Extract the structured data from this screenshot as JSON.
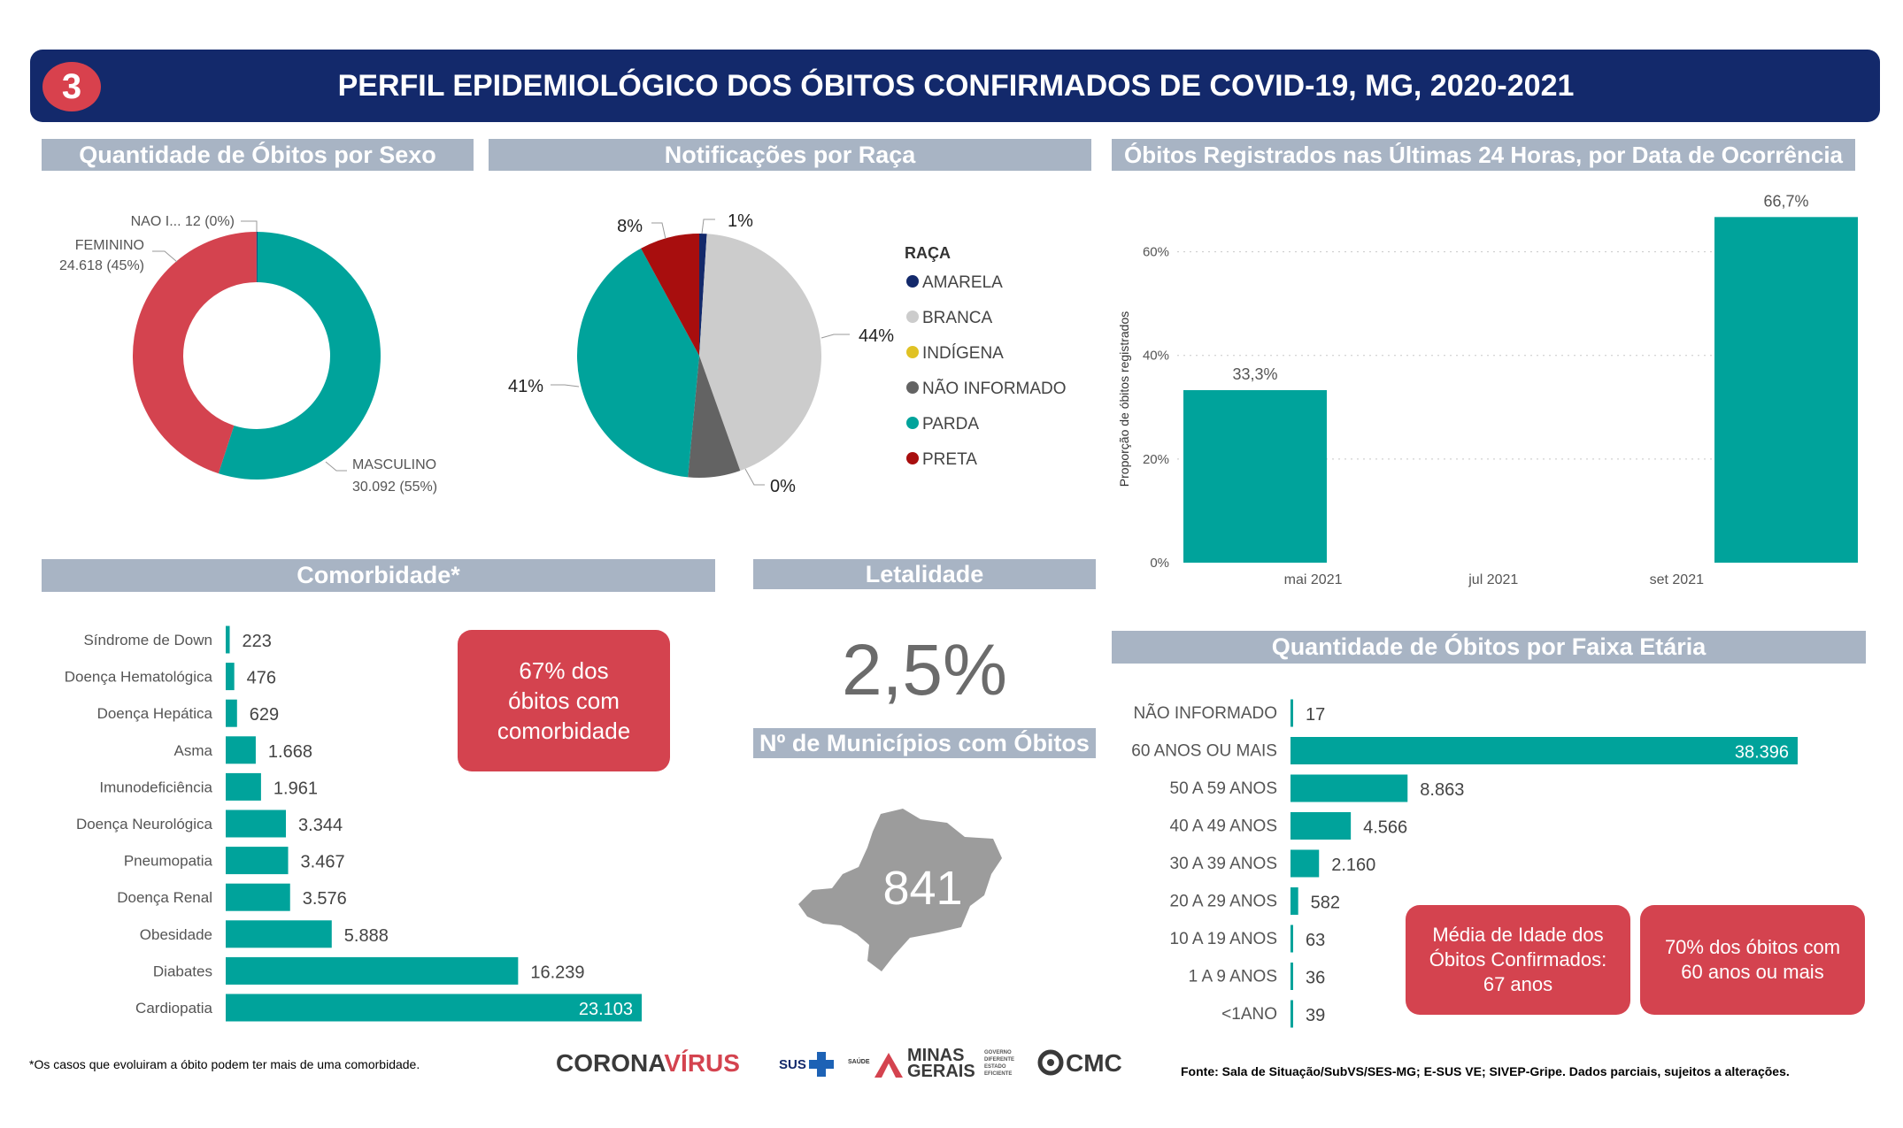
{
  "header": {
    "number": "3",
    "title": "PERFIL EPIDEMIOLÓGICO DOS ÓBITOS CONFIRMADOS DE COVID-19, MG, 2020-2021"
  },
  "sections": {
    "sexo": "Quantidade de Óbitos por Sexo",
    "raca": "Notificações por Raça",
    "ultimas24h": "Óbitos Registrados nas Últimas 24 Horas, por Data de Ocorrência",
    "comorbidade": "Comorbidade*",
    "letalidade": "Letalidade",
    "municipios": "Nº de Municípios com Óbitos",
    "faixa": "Quantidade de Óbitos por Faixa Etária"
  },
  "colors": {
    "teal": "#00a39b",
    "red": "#d4434f",
    "navy": "#13296b",
    "section": "#a8b4c4"
  },
  "chart_data": [
    {
      "type": "pie",
      "id": "sexo",
      "donut": true,
      "slices": [
        {
          "name": "MASCULINO",
          "value": 30092,
          "label": "30.092 (55%)",
          "color": "#00a39b"
        },
        {
          "name": "FEMININO",
          "value": 24618,
          "label": "24.618 (45%)",
          "color": "#d4434f"
        },
        {
          "name": "NAO I...",
          "value": 12,
          "label": "12 (0%)",
          "color": "#13296b"
        }
      ]
    },
    {
      "type": "pie",
      "id": "raca",
      "legend_title": "RAÇA",
      "slices": [
        {
          "name": "AMARELA",
          "value": 1,
          "label": "1%",
          "color": "#13296b"
        },
        {
          "name": "BRANCA",
          "value": 44,
          "label": "44%",
          "color": "#cccccc"
        },
        {
          "name": "INDÍGENA",
          "value": 0,
          "label": "0%",
          "color": "#e0c224"
        },
        {
          "name": "NÃO INFORMADO",
          "value": 7,
          "label": "",
          "color": "#636363"
        },
        {
          "name": "PARDA",
          "value": 41,
          "label": "41%",
          "color": "#00a39b"
        },
        {
          "name": "PRETA",
          "value": 8,
          "label": "8%",
          "color": "#a80e0e"
        }
      ]
    },
    {
      "type": "bar",
      "id": "ultimas24h",
      "ylabel": "Proporção de óbitos registrados",
      "ylim": [
        0,
        70
      ],
      "yticks": [
        0,
        20,
        40,
        60
      ],
      "ytick_labels": [
        "0%",
        "20%",
        "40%",
        "60%"
      ],
      "xtick_labels": [
        "mai 2021",
        "jul 2021",
        "set 2021"
      ],
      "bars": [
        {
          "date": "2021-04",
          "value": 33.3,
          "label": "33,3%"
        },
        {
          "date": "2021-10",
          "value": 66.7,
          "label": "66,7%"
        }
      ]
    },
    {
      "type": "bar",
      "id": "comorbidade",
      "orientation": "horizontal",
      "categories": [
        "Síndrome de Down",
        "Doença Hematológica",
        "Doença Hepática",
        "Asma",
        "Imunodeficiência",
        "Doença Neurológica",
        "Pneumopatia",
        "Doença Renal",
        "Obesidade",
        "Diabates",
        "Cardiopatia"
      ],
      "values": [
        223,
        476,
        629,
        1668,
        1961,
        3344,
        3467,
        3576,
        5888,
        16239,
        23103
      ],
      "labels": [
        "223",
        "476",
        "629",
        "1.668",
        "1.961",
        "3.344",
        "3.467",
        "3.576",
        "5.888",
        "16.239",
        "23.103"
      ]
    },
    {
      "type": "bar",
      "id": "faixa",
      "orientation": "horizontal",
      "categories": [
        "NÃO INFORMADO",
        "60 ANOS OU MAIS",
        "50 A 59 ANOS",
        "40 A 49 ANOS",
        "30 A 39 ANOS",
        "20 A 29 ANOS",
        "10 A 19 ANOS",
        "1 A 9 ANOS",
        "<1ANO"
      ],
      "values": [
        17,
        38396,
        8863,
        4566,
        2160,
        582,
        63,
        36,
        39
      ],
      "labels": [
        "17",
        "38.396",
        "8.863",
        "4.566",
        "2.160",
        "582",
        "63",
        "36",
        "39"
      ]
    }
  ],
  "kpis": {
    "letalidade": "2,5%",
    "municipios": "841",
    "comorbidade_callout": "67% dos\nóbitos com\ncomorbidade",
    "media_idade": "Média de Idade dos\nÓbitos Confirmados:\n67 anos",
    "pct_60": "70% dos óbitos com\n60 anos ou mais"
  },
  "footer": {
    "note": "*Os casos que evoluiram a óbito podem ter mais de uma comorbidade.",
    "source": "Fonte: Sala de Situação/SubVS/SES-MG; E-SUS VE; SIVEP-Gripe. Dados parciais, sujeitos a alterações.",
    "logo_corona": "CORONA",
    "logo_virus": "VÍRUS",
    "logo_sus": "SUS",
    "logo_saude": "SAÚDE",
    "logo_minas": "MINAS",
    "logo_gerais": "GERAIS",
    "logo_governo": "GOVERNO\nDIFERENTE\nESTADO\nEFICIENTE",
    "logo_cmc": "CMC"
  }
}
